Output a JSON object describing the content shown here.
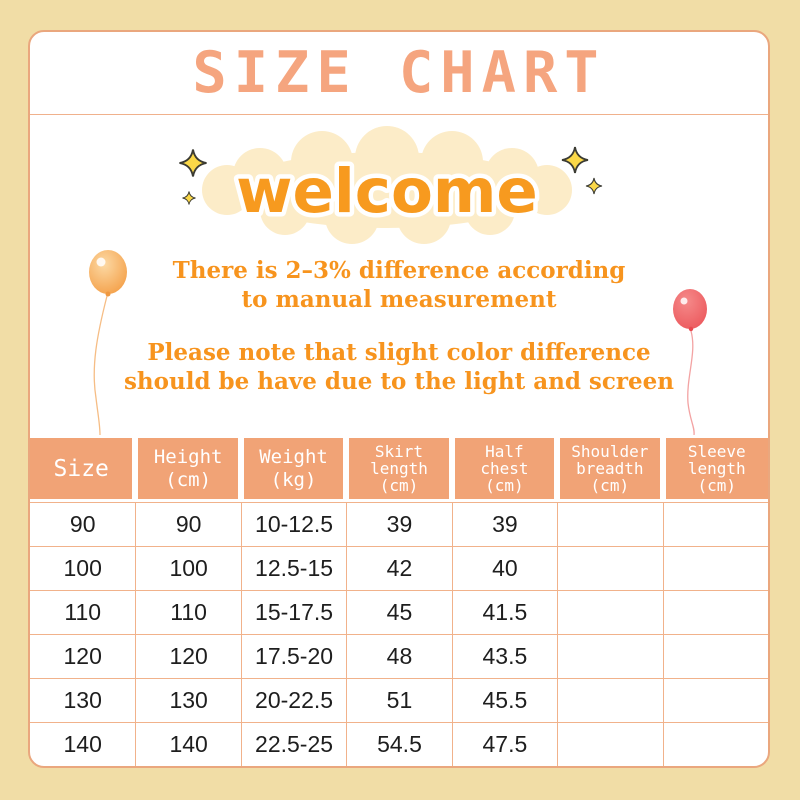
{
  "title": "SIZE CHART",
  "welcome": {
    "text": "welcome"
  },
  "notes": {
    "measurement": [
      "There is 2–3% difference according",
      "to manual measurement"
    ],
    "color": [
      "Please note that slight color difference",
      "should be have due to the light and screen"
    ]
  },
  "table": {
    "headers": [
      [
        "Size"
      ],
      [
        "Height",
        "(cm)"
      ],
      [
        "Weight",
        "(kg)"
      ],
      [
        "Skirt",
        "length",
        "(cm)"
      ],
      [
        "Half",
        "chest",
        "(cm)"
      ],
      [
        "Shoulder",
        "breadth",
        "(cm)"
      ],
      [
        "Sleeve",
        "length",
        "(cm)"
      ]
    ],
    "rows": [
      [
        "90",
        "90",
        "10-12.5",
        "39",
        "39",
        "",
        ""
      ],
      [
        "100",
        "100",
        "12.5-15",
        "42",
        "40",
        "",
        ""
      ],
      [
        "110",
        "110",
        "15-17.5",
        "45",
        "41.5",
        "",
        ""
      ],
      [
        "120",
        "120",
        "17.5-20",
        "48",
        "43.5",
        "",
        ""
      ],
      [
        "130",
        "130",
        "20-22.5",
        "51",
        "45.5",
        "",
        ""
      ],
      [
        "140",
        "140",
        "22.5-25",
        "54.5",
        "47.5",
        "",
        ""
      ]
    ]
  },
  "colors": {
    "page_background": "#f1dda6",
    "card_border": "#eaa77e",
    "title_text": "#f5a57f",
    "note_text": "#f7941e",
    "welcome_text": "#f79a1f",
    "cloud": "#fcecc8",
    "sparkle": "#fbd848",
    "balloon_left": "#f5a449",
    "balloon_right": "#ed5c60",
    "header_background": "#f1a376",
    "header_text": "#ffffff",
    "cell_border": "#f1b28b",
    "cell_text": "#1e1e1e"
  }
}
